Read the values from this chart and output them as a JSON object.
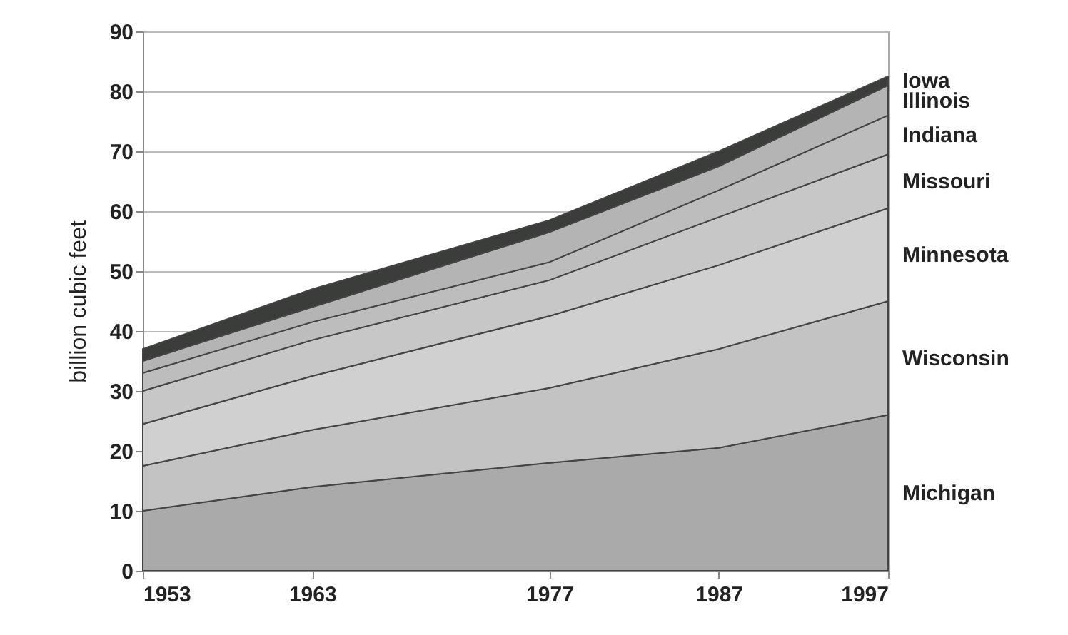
{
  "chart_data": {
    "type": "area",
    "stacked": true,
    "ylabel": "billion cubic feet",
    "x": [
      1953,
      1963,
      1977,
      1987,
      1997
    ],
    "xlim": [
      1953,
      1997
    ],
    "xticks": [
      1953,
      1963,
      1977,
      1987,
      1997
    ],
    "ylim": [
      0,
      90
    ],
    "yticks": [
      0,
      10,
      20,
      30,
      40,
      50,
      60,
      70,
      80,
      90
    ],
    "grid": "y",
    "legend": false,
    "series": [
      {
        "name": "Michigan",
        "color": "#a9aaa9",
        "values": [
          10,
          14,
          18,
          20.5,
          26
        ]
      },
      {
        "name": "Wisconsin",
        "color": "#c2c3c2",
        "values": [
          7.5,
          9.5,
          12.5,
          16.5,
          19
        ]
      },
      {
        "name": "Minnesota",
        "color": "#cfd0cf",
        "values": [
          7,
          9,
          12,
          14,
          15.5
        ]
      },
      {
        "name": "Missouri",
        "color": "#c6c7c6",
        "values": [
          5.5,
          6,
          6,
          8,
          9
        ]
      },
      {
        "name": "Indiana",
        "color": "#bcbdbc",
        "values": [
          3,
          3,
          3,
          4.5,
          6.5
        ]
      },
      {
        "name": "Illinois",
        "color": "#b3b4b3",
        "values": [
          2,
          2.5,
          5,
          4,
          5
        ]
      },
      {
        "name": "Iowa",
        "color": "#3a3d3a",
        "values": [
          2,
          3,
          2,
          2.5,
          1.5
        ]
      }
    ]
  }
}
